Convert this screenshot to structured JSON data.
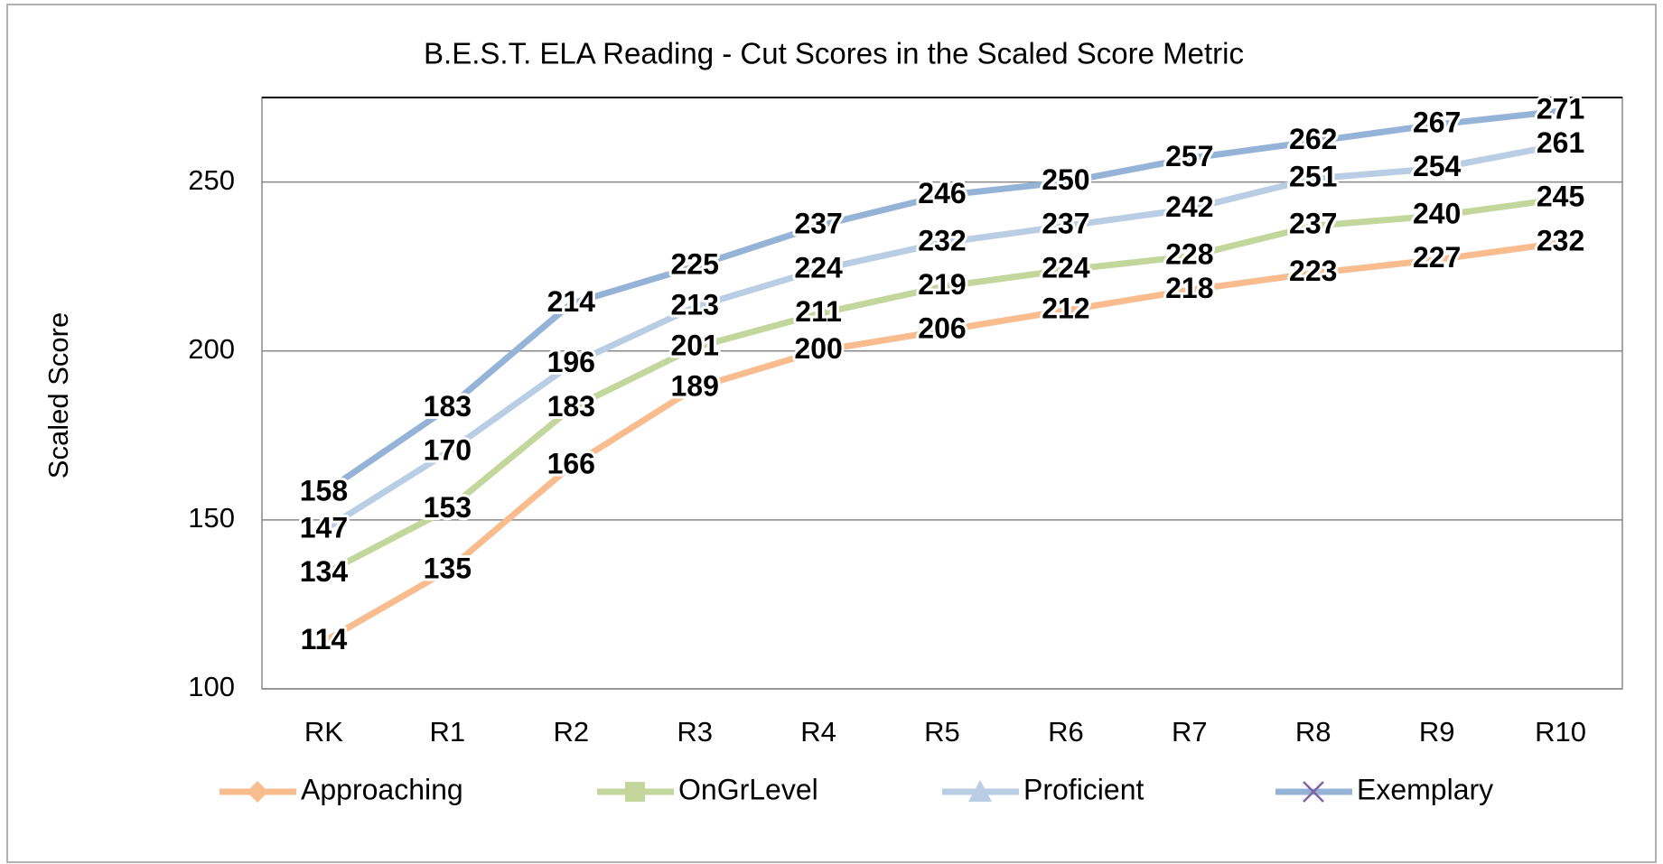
{
  "chart_data": {
    "type": "line",
    "title": "B.E.S.T. ELA Reading - Cut Scores in the Scaled Score Metric",
    "y_label": "Scaled Score",
    "categories": [
      "RK",
      "R1",
      "R2",
      "R3",
      "R4",
      "R5",
      "R6",
      "R7",
      "R8",
      "R9",
      "R10"
    ],
    "series": [
      {
        "name": "Approaching",
        "color": "#f9bc8f",
        "marker": "diamond",
        "values": [
          114,
          135,
          166,
          189,
          200,
          206,
          212,
          218,
          223,
          227,
          232
        ]
      },
      {
        "name": "OnGrLevel",
        "color": "#c3d69b",
        "marker": "square",
        "values": [
          134,
          153,
          183,
          201,
          211,
          219,
          224,
          228,
          237,
          240,
          245
        ]
      },
      {
        "name": "Proficient",
        "color": "#b9cde5",
        "marker": "triangle",
        "values": [
          147,
          170,
          196,
          213,
          224,
          232,
          237,
          242,
          251,
          254,
          261
        ]
      },
      {
        "name": "Exemplary",
        "color": "#95b3d7",
        "marker": "x",
        "values": [
          158,
          183,
          214,
          225,
          237,
          246,
          250,
          257,
          262,
          267,
          271
        ]
      }
    ],
    "ylim": [
      100,
      275
    ],
    "yticks": [
      100,
      150,
      200,
      250
    ],
    "grid": true,
    "legend": "bottom"
  }
}
